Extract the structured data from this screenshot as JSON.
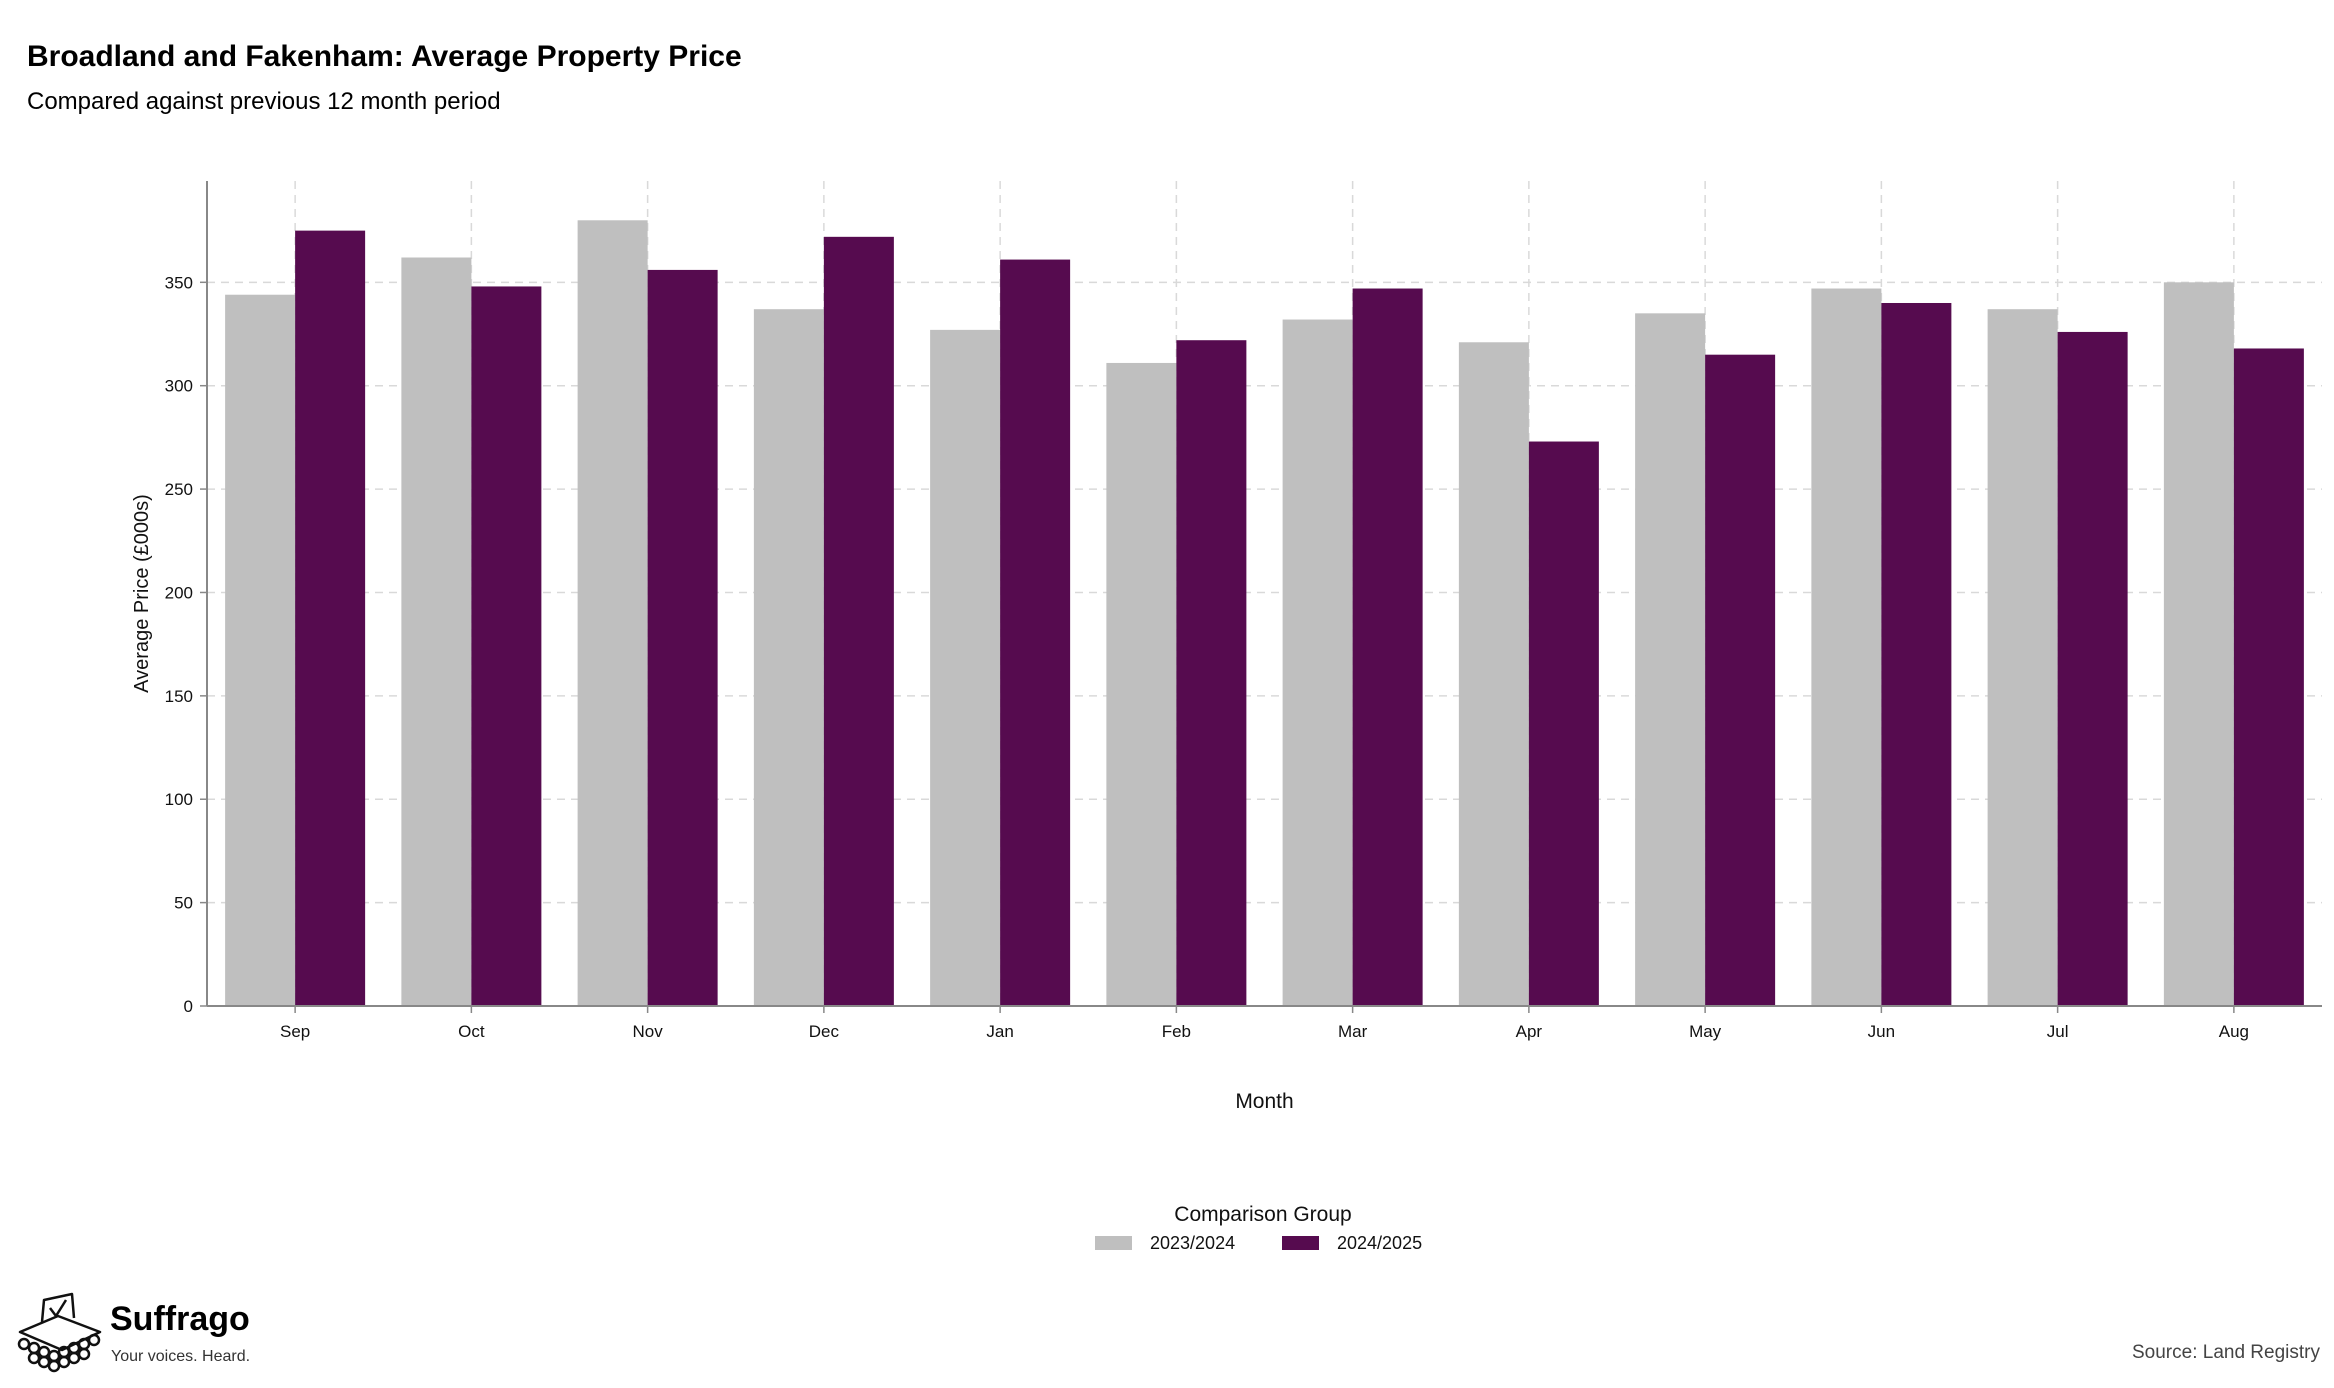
{
  "title": "Broadland and Fakenham: Average Property Price",
  "subtitle": "Compared against previous 12 month period",
  "source": "Source: Land Registry",
  "brand": {
    "name": "Suffrago",
    "tagline": "Your voices. Heard."
  },
  "colors": {
    "series_2023": "#bfbfbf",
    "series_2024": "#560b4f",
    "grid": "#d9d9d9",
    "axis": "#888888"
  },
  "chart_data": {
    "type": "bar",
    "xlabel": "Month",
    "ylabel": "Average Price (£000s)",
    "ylim": [
      0,
      399
    ],
    "yticks": [
      0,
      50,
      100,
      150,
      200,
      250,
      300,
      350
    ],
    "grid": true,
    "legend_title": "Comparison Group",
    "legend_position": "bottom",
    "categories": [
      "Sep",
      "Oct",
      "Nov",
      "Dec",
      "Jan",
      "Feb",
      "Mar",
      "Apr",
      "May",
      "Jun",
      "Jul",
      "Aug"
    ],
    "series": [
      {
        "name": "2023/2024",
        "color": "#bfbfbf",
        "values": [
          344,
          362,
          380,
          337,
          327,
          311,
          332,
          321,
          335,
          347,
          337,
          350
        ]
      },
      {
        "name": "2024/2025",
        "color": "#560b4f",
        "values": [
          375,
          348,
          356,
          372,
          361,
          322,
          347,
          273,
          315,
          340,
          326,
          318
        ]
      }
    ]
  }
}
